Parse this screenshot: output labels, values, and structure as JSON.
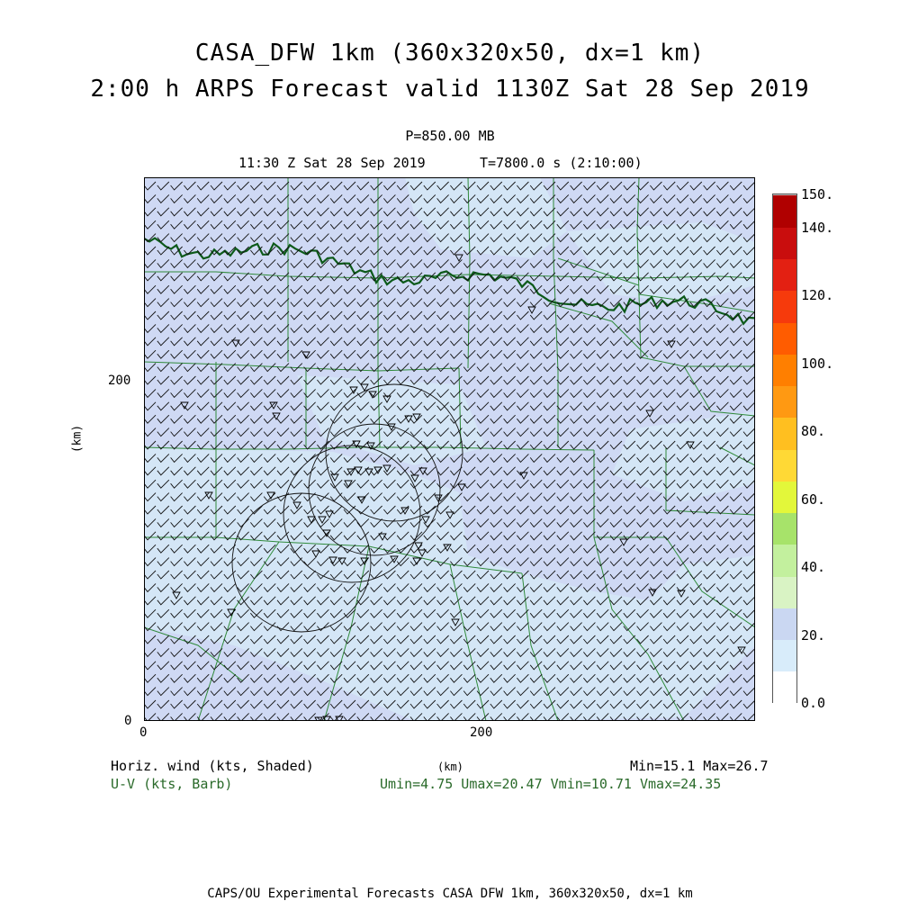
{
  "header": {
    "title_line1": "CASA_DFW 1km (360x320x50, dx=1 km)",
    "title_line2": "2:00 h ARPS Forecast valid 1130Z Sat 28 Sep 2019",
    "pressure_level": "P=850.00 MB",
    "valid_time": "11:30 Z Sat 28 Sep 2019",
    "time_seconds": "T=7800.0 s (2:10:00)"
  },
  "axes": {
    "y_label": "(km)",
    "x_label": "(km)",
    "y_ticks": [
      "200",
      "0"
    ],
    "x_ticks": [
      "0",
      "200"
    ]
  },
  "legend": {
    "field_label": "Horiz. wind (kts, Shaded)",
    "barb_label": "U-V (kts, Barb)",
    "min_max": "Min=15.1 Max=26.7",
    "uv_stats": "Umin=4.75 Umax=20.47 Vmin=10.71 Vmax=24.35"
  },
  "colorbar": {
    "labels": [
      "150.",
      "140.",
      "120.",
      "100.",
      "80.",
      "60.",
      "40.",
      "20.",
      "0.0"
    ],
    "colors": [
      "#ffffff",
      "#d8ecfa",
      "#cad7f2",
      "#d9f3c4",
      "#c3f09e",
      "#a7e36a",
      "#e3f73a",
      "#ffd935",
      "#ffbf20",
      "#ff9912",
      "#ff7f00",
      "#ff5c00",
      "#f63a0c",
      "#e32012",
      "#c90d0d",
      "#b00000"
    ]
  },
  "map": {
    "background_colors": [
      "#cfd9f4",
      "#d4e7f6"
    ],
    "boundary_color": "#2f8a3a",
    "river_color": "#0d5a1a",
    "barb_color": "#111111",
    "radar_circle_color": "#111111"
  },
  "footer": {
    "credit": "CAPS/OU Experimental Forecasts  CASA DFW 1km, 360x320x50, dx=1 km"
  }
}
